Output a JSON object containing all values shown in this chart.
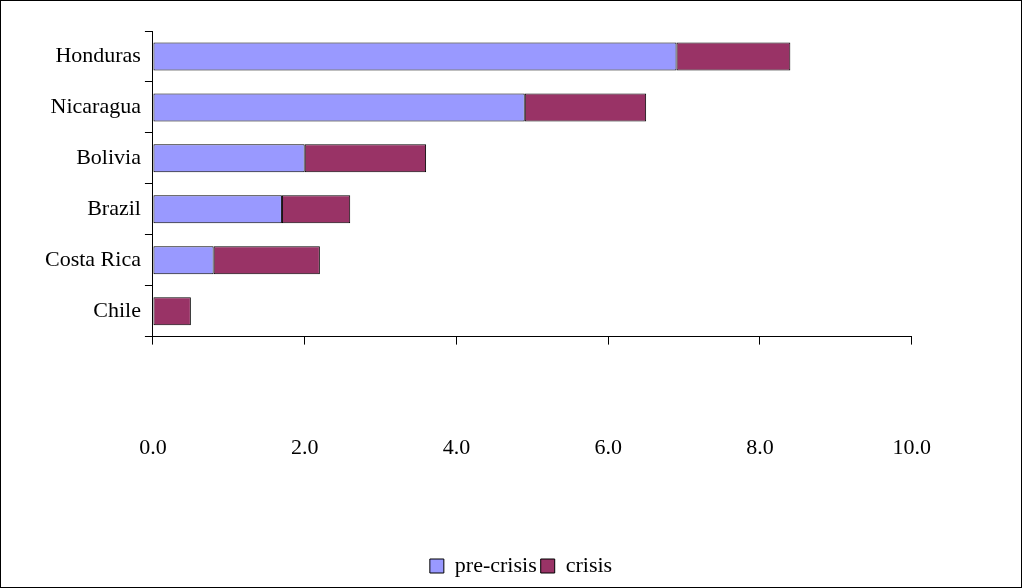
{
  "chart_data": {
    "type": "bar",
    "orientation": "horizontal",
    "stacked": true,
    "categories": [
      "Honduras",
      "Nicaragua",
      "Bolivia",
      "Brazil",
      "Costa Rica",
      "Chile"
    ],
    "series": [
      {
        "name": "pre-crisis",
        "color": "#9999ff",
        "values": [
          6.9,
          4.9,
          2.0,
          1.7,
          0.8,
          0
        ]
      },
      {
        "name": "crisis",
        "color": "#993366",
        "values": [
          1.5,
          1.6,
          1.6,
          0.9,
          1.4,
          0.5
        ]
      }
    ],
    "xlim": [
      0,
      10
    ],
    "xticks": [
      {
        "value": 0,
        "label": "0.0"
      },
      {
        "value": 2,
        "label": "2.0"
      },
      {
        "value": 4,
        "label": "4.0"
      },
      {
        "value": 6,
        "label": "6.0"
      },
      {
        "value": 8,
        "label": "8.0"
      },
      {
        "value": 10,
        "label": "10.0"
      }
    ],
    "grid": false,
    "legend": "bottom"
  }
}
